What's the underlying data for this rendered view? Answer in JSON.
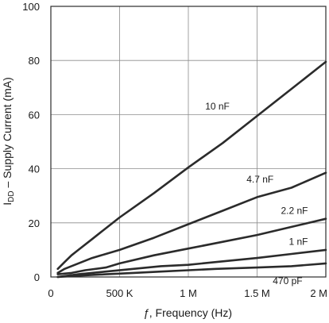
{
  "chart_data": {
    "type": "line",
    "title": "",
    "xlabel": "ƒ, Frequency (Hz)",
    "xlabel_parts": {
      "symbol": "ƒ",
      "rest": ", Frequency (Hz)"
    },
    "ylabel": "IDD – Supply Current (mA)",
    "ylabel_parts": {
      "main": "I",
      "sub": "DD",
      "rest": " – Supply Current (mA)"
    },
    "xlim": [
      0,
      2000000
    ],
    "ylim": [
      0,
      100
    ],
    "x_ticks": [
      {
        "value": 0,
        "label": "0"
      },
      {
        "value": 500000,
        "label": "500 K"
      },
      {
        "value": 1000000,
        "label": "1 M"
      },
      {
        "value": 1500000,
        "label": "1.5 M"
      },
      {
        "value": 2000000,
        "label": "2 M"
      }
    ],
    "y_ticks": [
      {
        "value": 0,
        "label": "0"
      },
      {
        "value": 20,
        "label": "20"
      },
      {
        "value": 40,
        "label": "40"
      },
      {
        "value": 60,
        "label": "60"
      },
      {
        "value": 80,
        "label": "80"
      },
      {
        "value": 100,
        "label": "100"
      }
    ],
    "grid": true,
    "legend": "none",
    "series": [
      {
        "name": "10 nF",
        "x": [
          50000,
          100000,
          150000,
          200000,
          300000,
          400000,
          500000,
          750000,
          1000000,
          1250000,
          1500000,
          1750000,
          2000000
        ],
        "y": [
          3,
          5.5,
          8,
          10,
          14,
          18,
          22,
          31,
          40.5,
          49.5,
          59.5,
          69.5,
          79.5
        ]
      },
      {
        "name": "4.7 nF",
        "x": [
          50000,
          100000,
          200000,
          300000,
          400000,
          500000,
          750000,
          1000000,
          1250000,
          1500000,
          1750000,
          2000000
        ],
        "y": [
          1.5,
          3,
          5,
          7,
          8.5,
          10,
          14.5,
          19.5,
          24.5,
          29.5,
          33,
          38.5
        ]
      },
      {
        "name": "2.2 nF",
        "x": [
          50000,
          150000,
          250000,
          400000,
          500000,
          750000,
          1000000,
          1250000,
          1500000,
          1750000,
          2000000
        ],
        "y": [
          1,
          1.5,
          2.5,
          3.5,
          5,
          8,
          10.5,
          13,
          15.5,
          18.5,
          21.5
        ]
      },
      {
        "name": "1 nF",
        "x": [
          50000,
          200000,
          400000,
          600000,
          800000,
          1000000,
          1200000,
          1500000,
          1750000,
          2000000
        ],
        "y": [
          0,
          1,
          2,
          3,
          4,
          4.5,
          5.5,
          7,
          8.5,
          10
        ]
      },
      {
        "name": "470 pF",
        "x": [
          50000,
          200000,
          400000,
          600000,
          800000,
          1000000,
          1200000,
          1500000,
          1750000,
          2000000
        ],
        "y": [
          0,
          0.5,
          1,
          1.5,
          2,
          2.5,
          3,
          3.5,
          4,
          5
        ]
      }
    ],
    "series_labels": [
      "10 nF",
      "4.7 nF",
      "2.2 nF",
      "1 nF",
      "470 pF"
    ],
    "colors": {
      "line": "#2b2b2b",
      "grid": "#8c8c8c",
      "plot_bg": "#ffffff"
    }
  }
}
